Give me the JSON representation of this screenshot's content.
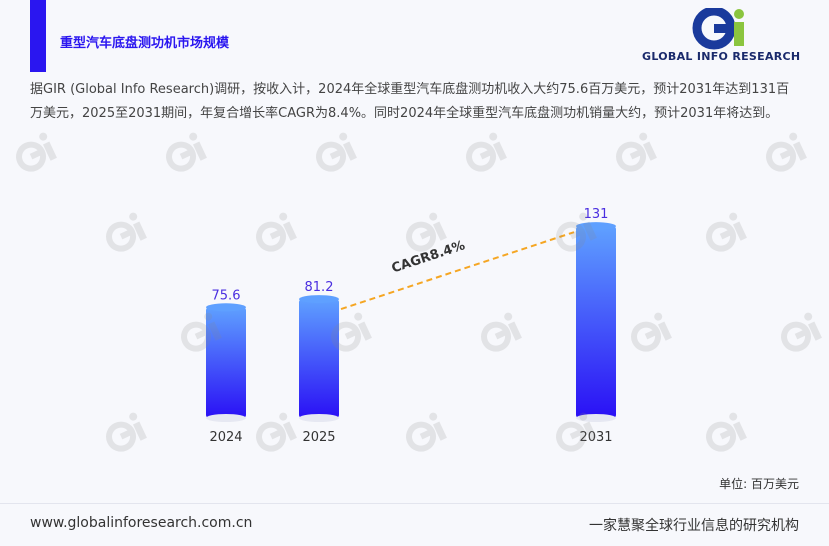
{
  "header": {
    "title": "重型汽车底盘测功机市场规模"
  },
  "logo": {
    "text": "GLOBAL INFO RESEARCH"
  },
  "description": "据GIR (Global Info Research)调研，按收入计，2024年全球重型汽车底盘测功机收入大约75.6百万美元，预计2031年达到131百万美元，2025至2031期间，年复合增长率CAGR为8.4%。同时2024年全球重型汽车底盘测功机销量大约，预计2031年将达到。",
  "chart_data": {
    "type": "bar",
    "categories": [
      "2024",
      "2025",
      "2031"
    ],
    "values": [
      75.6,
      81.2,
      131
    ],
    "value_labels": [
      "75.6",
      "81.2",
      "131"
    ],
    "annotation": "CAGR8.4%",
    "unit": "单位: 百万美元",
    "ylim": [
      0,
      140
    ],
    "grid": false,
    "colors": {
      "bar_top": "#5fa0ff",
      "bar_bottom": "#2a10f5",
      "label": "#4a2ee0",
      "cagr_line": "#f5a623"
    }
  },
  "footer": {
    "website": "www.globalinforesearch.com.cn",
    "slogan": "一家慧聚全球行业信息的研究机构"
  }
}
